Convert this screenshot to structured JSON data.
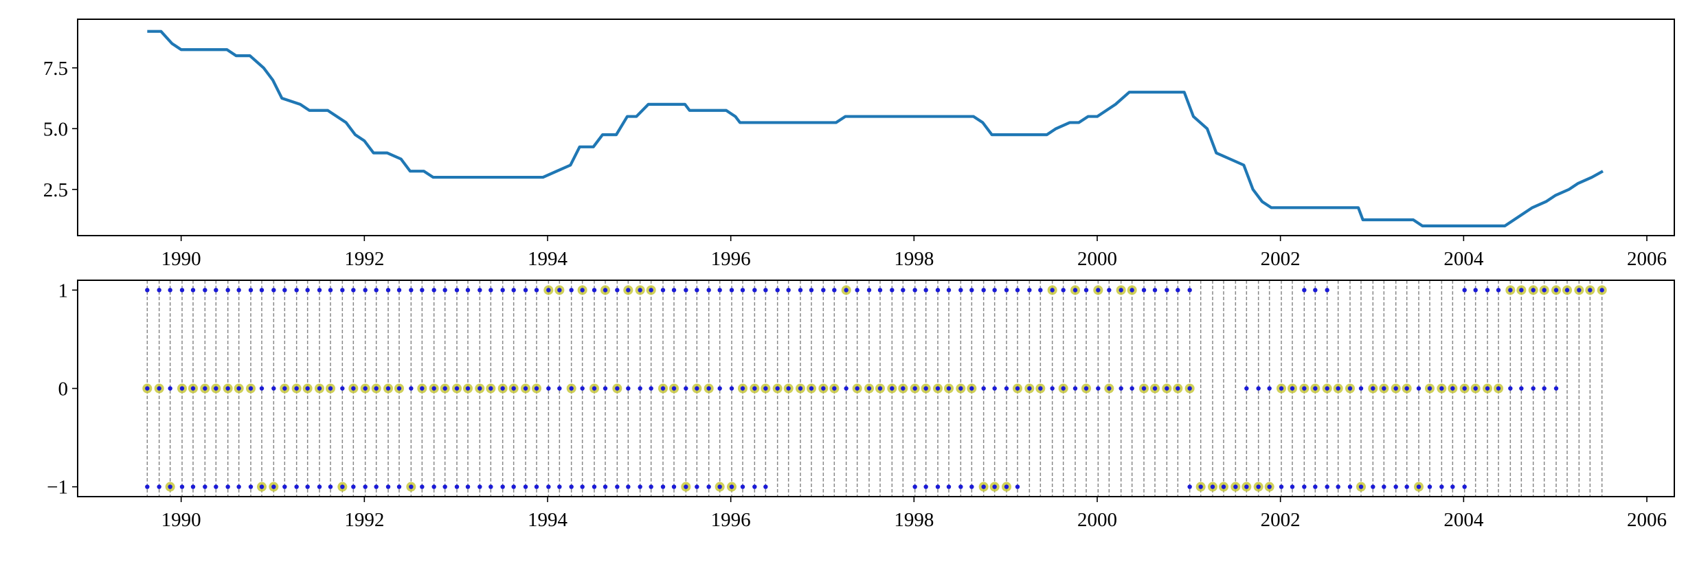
{
  "chart_data": [
    {
      "type": "line",
      "color": "#1f77b4",
      "x": [
        1989.63,
        1989.78,
        1989.9,
        1990.0,
        1990.5,
        1990.6,
        1990.75,
        1990.9,
        1991.0,
        1991.1,
        1991.3,
        1991.4,
        1991.6,
        1991.8,
        1991.9,
        1992.0,
        1992.1,
        1992.25,
        1992.4,
        1992.5,
        1992.65,
        1992.75,
        1993.95,
        1994.1,
        1994.25,
        1994.35,
        1994.5,
        1994.6,
        1994.75,
        1994.87,
        1994.97,
        1995.1,
        1995.5,
        1995.55,
        1995.95,
        1996.05,
        1996.1,
        1997.15,
        1997.25,
        1998.65,
        1998.75,
        1998.85,
        1999.45,
        1999.55,
        1999.7,
        1999.8,
        1999.9,
        2000.0,
        2000.1,
        2000.2,
        2000.35,
        2000.95,
        2001.05,
        2001.2,
        2001.3,
        2001.45,
        2001.6,
        2001.7,
        2001.8,
        2001.9,
        2002.85,
        2002.9,
        2003.45,
        2003.55,
        2004.45,
        2004.55,
        2004.65,
        2004.75,
        2004.9,
        2005.0,
        2005.15,
        2005.25,
        2005.4,
        2005.52
      ],
      "series": [
        {
          "color": "#1f77b4",
          "values": [
            9,
            9,
            8.5,
            8.25,
            8.25,
            8,
            8,
            7.5,
            7,
            6.25,
            6,
            5.75,
            5.75,
            5.25,
            4.75,
            4.5,
            4,
            4,
            3.75,
            3.25,
            3.25,
            3,
            3,
            3.25,
            3.5,
            4.25,
            4.25,
            4.75,
            4.75,
            5.5,
            5.5,
            6,
            6,
            5.75,
            5.75,
            5.5,
            5.25,
            5.25,
            5.5,
            5.5,
            5.25,
            4.75,
            4.75,
            5,
            5.25,
            5.25,
            5.5,
            5.5,
            5.75,
            6,
            6.5,
            6.5,
            5.5,
            5,
            4,
            3.75,
            3.5,
            2.5,
            2,
            1.75,
            1.75,
            1.25,
            1.25,
            1,
            1,
            1.25,
            1.5,
            1.75,
            2,
            2.25,
            2.5,
            2.75,
            3,
            3.25
          ]
        }
      ],
      "xlim": [
        1988.87,
        2006.3
      ],
      "xticks": [
        1990,
        1992,
        1994,
        1996,
        1998,
        2000,
        2002,
        2004,
        2006
      ],
      "ylim": [
        0.6,
        9.5
      ],
      "yticks": [
        2.5,
        {
          "value": 5,
          "label": "5.0"
        },
        7.5
      ]
    },
    {
      "type": "dots",
      "vlines_color": "#888888",
      "x": [
        1989.63,
        1989.76,
        1989.88,
        1990.01,
        1990.13,
        1990.26,
        1990.38,
        1990.51,
        1990.63,
        1990.76,
        1990.88,
        1991.01,
        1991.13,
        1991.26,
        1991.38,
        1991.51,
        1991.63,
        1991.76,
        1991.88,
        1992.01,
        1992.13,
        1992.26,
        1992.38,
        1992.51,
        1992.63,
        1992.76,
        1992.88,
        1993.01,
        1993.13,
        1993.26,
        1993.38,
        1993.51,
        1993.63,
        1993.76,
        1993.88,
        1994.01,
        1994.13,
        1994.26,
        1994.38,
        1994.51,
        1994.63,
        1994.76,
        1994.88,
        1995.01,
        1995.13,
        1995.26,
        1995.38,
        1995.51,
        1995.63,
        1995.76,
        1995.88,
        1996.01,
        1996.13,
        1996.26,
        1996.38,
        1996.51,
        1996.63,
        1996.76,
        1996.88,
        1997.01,
        1997.13,
        1997.26,
        1997.38,
        1997.51,
        1997.63,
        1997.76,
        1997.88,
        1998.01,
        1998.13,
        1998.26,
        1998.38,
        1998.51,
        1998.63,
        1998.76,
        1998.88,
        1999.01,
        1999.13,
        1999.26,
        1999.38,
        1999.51,
        1999.63,
        1999.76,
        1999.88,
        2000.01,
        2000.13,
        2000.26,
        2000.38,
        2000.51,
        2000.63,
        2000.76,
        2000.88,
        2001.01,
        2001.13,
        2001.26,
        2001.38,
        2001.51,
        2001.63,
        2001.76,
        2001.88,
        2002.01,
        2002.13,
        2002.26,
        2002.38,
        2002.51,
        2002.63,
        2002.76,
        2002.88,
        2003.01,
        2003.13,
        2003.26,
        2003.38,
        2003.51,
        2003.63,
        2003.76,
        2003.88,
        2004.01,
        2004.13,
        2004.26,
        2004.38,
        2004.51,
        2004.63,
        2004.76,
        2004.88,
        2005.01,
        2005.13,
        2005.26,
        2005.38,
        2005.51
      ],
      "decision": {
        "color": "#c8c83c",
        "values": [
          0,
          0,
          -1,
          0,
          0,
          0,
          0,
          0,
          0,
          0,
          -1,
          -1,
          0,
          0,
          0,
          0,
          0,
          -1,
          0,
          0,
          0,
          0,
          0,
          -1,
          0,
          0,
          0,
          0,
          0,
          0,
          0,
          0,
          0,
          0,
          0,
          1,
          1,
          0,
          1,
          0,
          1,
          0,
          1,
          1,
          1,
          0,
          0,
          -1,
          0,
          0,
          -1,
          -1,
          0,
          0,
          0,
          0,
          0,
          0,
          0,
          0,
          0,
          1,
          0,
          0,
          0,
          0,
          0,
          0,
          0,
          0,
          0,
          0,
          0,
          -1,
          -1,
          -1,
          0,
          0,
          0,
          1,
          0,
          1,
          0,
          1,
          0,
          1,
          1,
          0,
          0,
          0,
          0,
          0,
          -1,
          -1,
          -1,
          -1,
          -1,
          -1,
          -1,
          0,
          0,
          0,
          0,
          0,
          0,
          0,
          -1,
          0,
          0,
          0,
          0,
          -1,
          0,
          0,
          0,
          0,
          0,
          0,
          0,
          1,
          1,
          1,
          1,
          1,
          1,
          1,
          1,
          1
        ]
      },
      "series": [
        {
          "color": "#1a1ad6",
          "values": [
            1,
            1,
            1,
            1,
            1,
            1,
            1,
            1,
            1,
            1,
            1,
            1,
            1,
            1,
            1,
            1,
            1,
            1,
            1,
            1,
            1,
            1,
            1,
            1,
            1,
            1,
            1,
            1,
            1,
            1,
            1,
            1,
            1,
            1,
            1,
            1,
            1,
            1,
            1,
            1,
            1,
            1,
            1,
            1,
            1,
            1,
            1,
            1,
            1,
            1,
            1,
            1,
            1,
            1,
            1,
            1,
            1,
            1,
            1,
            1,
            1,
            1,
            1,
            1,
            1,
            1,
            1,
            1,
            1,
            1,
            1,
            1,
            1,
            1,
            1,
            1,
            1,
            1,
            1,
            1,
            1,
            1,
            1,
            1,
            1,
            1,
            1,
            1,
            1,
            1,
            1,
            1,
            null,
            null,
            null,
            null,
            null,
            null,
            null,
            null,
            null,
            1,
            1,
            1,
            null,
            null,
            null,
            null,
            null,
            null,
            null,
            null,
            null,
            null,
            null,
            1,
            1,
            1,
            1,
            1,
            1,
            1,
            1,
            1,
            1,
            1,
            1,
            1
          ]
        },
        {
          "color": "#1a1ad6",
          "values": [
            0,
            0,
            0,
            0,
            0,
            0,
            0,
            0,
            0,
            0,
            0,
            0,
            0,
            0,
            0,
            0,
            0,
            0,
            0,
            0,
            0,
            0,
            0,
            0,
            0,
            0,
            0,
            0,
            0,
            0,
            0,
            0,
            0,
            0,
            0,
            0,
            0,
            0,
            0,
            0,
            0,
            0,
            0,
            0,
            0,
            0,
            0,
            0,
            0,
            0,
            0,
            0,
            0,
            0,
            0,
            0,
            0,
            0,
            0,
            0,
            0,
            0,
            0,
            0,
            0,
            0,
            0,
            0,
            0,
            0,
            0,
            0,
            0,
            0,
            0,
            0,
            0,
            0,
            0,
            0,
            0,
            0,
            0,
            0,
            0,
            0,
            0,
            0,
            0,
            0,
            0,
            0,
            null,
            null,
            null,
            null,
            0,
            0,
            0,
            0,
            0,
            0,
            0,
            0,
            0,
            0,
            0,
            0,
            0,
            0,
            0,
            0,
            0,
            0,
            0,
            0,
            0,
            0,
            0,
            0,
            0,
            0,
            0,
            0,
            null,
            null,
            null,
            null
          ]
        },
        {
          "color": "#1a1ad6",
          "values": [
            -1,
            -1,
            -1,
            -1,
            -1,
            -1,
            -1,
            -1,
            -1,
            -1,
            -1,
            -1,
            -1,
            -1,
            -1,
            -1,
            -1,
            -1,
            -1,
            -1,
            -1,
            -1,
            -1,
            -1,
            -1,
            -1,
            -1,
            -1,
            -1,
            -1,
            -1,
            -1,
            -1,
            -1,
            -1,
            -1,
            -1,
            -1,
            -1,
            -1,
            -1,
            -1,
            -1,
            -1,
            -1,
            -1,
            -1,
            -1,
            -1,
            -1,
            -1,
            -1,
            -1,
            -1,
            -1,
            null,
            null,
            null,
            null,
            null,
            null,
            null,
            null,
            null,
            null,
            null,
            null,
            -1,
            -1,
            -1,
            -1,
            -1,
            -1,
            -1,
            -1,
            -1,
            -1,
            null,
            null,
            null,
            null,
            null,
            null,
            null,
            null,
            null,
            null,
            null,
            null,
            null,
            null,
            -1,
            -1,
            -1,
            -1,
            -1,
            -1,
            -1,
            -1,
            -1,
            -1,
            -1,
            -1,
            -1,
            -1,
            -1,
            -1,
            -1,
            -1,
            -1,
            -1,
            -1,
            -1,
            -1,
            -1,
            -1,
            null,
            null,
            null,
            null,
            null,
            null,
            null,
            null,
            null,
            null,
            null,
            null
          ]
        }
      ],
      "xlim": [
        1988.87,
        2006.3
      ],
      "xticks": [
        1990,
        1992,
        1994,
        1996,
        1998,
        2000,
        2002,
        2004,
        2006
      ],
      "ylim": [
        -1.1,
        1.1
      ],
      "yticks": [
        {
          "value": -1,
          "label": "−1"
        },
        0,
        1
      ]
    }
  ]
}
